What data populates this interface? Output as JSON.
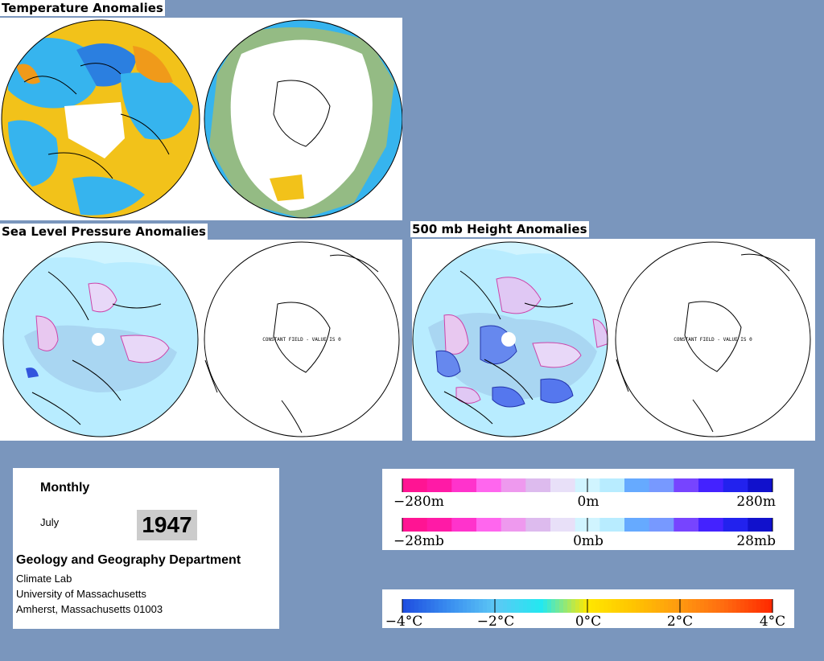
{
  "titles": {
    "temperature": "Temperature Anomalies",
    "slp": "Sea Level Pressure Anomalies",
    "height": "500 mb Height Anomalies"
  },
  "constant_note": "CONSTANT FIELD - VALUE IS 0",
  "info": {
    "period": "Monthly",
    "month": "July",
    "year": "1947",
    "department": "Geology and Geography Department",
    "lab": "Climate Lab",
    "university": "University of Massachusetts",
    "address": "Amherst, Massachusetts 01003"
  },
  "height_scale": {
    "labels": [
      "−280m",
      "0m",
      "280m"
    ],
    "colors": [
      "#ff1493",
      "#ff1aa6",
      "#ff33cc",
      "#ff66ee",
      "#ee99ee",
      "#ddbbee",
      "#e8e0f8",
      "#d0f4ff",
      "#b8ecff",
      "#66aaff",
      "#7799ff",
      "#7744ff",
      "#4422ff",
      "#2222ee",
      "#1111cc"
    ]
  },
  "pressure_scale": {
    "labels": [
      "−28mb",
      "0mb",
      "28mb"
    ],
    "colors": [
      "#ff1493",
      "#ff1aa6",
      "#ff33cc",
      "#ff66ee",
      "#ee99ee",
      "#ddbbee",
      "#e8e0f8",
      "#d0f4ff",
      "#b8ecff",
      "#66aaff",
      "#7799ff",
      "#7744ff",
      "#4422ff",
      "#2222ee",
      "#1111cc"
    ]
  },
  "temp_scale": {
    "labels": [
      "−4°C",
      "−2°C",
      "0°C",
      "2°C",
      "4°C"
    ],
    "colors": [
      "#1f4fe0",
      "#3a8ff0",
      "#5cc8f5",
      "#22e8f0",
      "#ffe800",
      "#ffc400",
      "#ff9a10",
      "#ff6a10",
      "#ff2a00"
    ]
  }
}
